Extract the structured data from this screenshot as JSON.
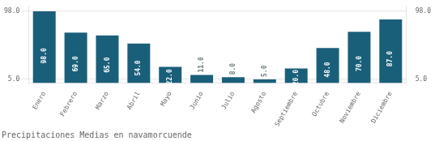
{
  "chart_data": {
    "type": "bar",
    "title": "Precipitaciones Medias en navamorcuende",
    "categories": [
      "Enero",
      "Febrero",
      "Marzo",
      "Abril",
      "Mayo",
      "Junio",
      "Julio",
      "Agosto",
      "Septiembre",
      "Octubre",
      "Noviembre",
      "Diciembre"
    ],
    "values": [
      98.0,
      69.0,
      65.0,
      54.0,
      22.0,
      11.0,
      8.0,
      5.0,
      20.0,
      48.0,
      70.0,
      87.0
    ],
    "value_labels": [
      "98.0",
      "69.0",
      "65.0",
      "54.0",
      "22.0",
      "11.0",
      "8.0",
      "5.0",
      "20.0",
      "48.0",
      "70.0",
      "87.0"
    ],
    "data_labels": true,
    "color": "#1a5f7a",
    "ylim": [
      0,
      104.86
    ],
    "yticks": [
      {
        "value": 5.0,
        "label": "5.0"
      },
      {
        "value": 98.0,
        "label": "98.0"
      }
    ],
    "y2lim": [
      0,
      104.86
    ],
    "y2ticks": [
      {
        "value": 5.0,
        "label": "5.0"
      },
      {
        "value": 98.0,
        "label": "98.0"
      }
    ],
    "grid": true
  }
}
